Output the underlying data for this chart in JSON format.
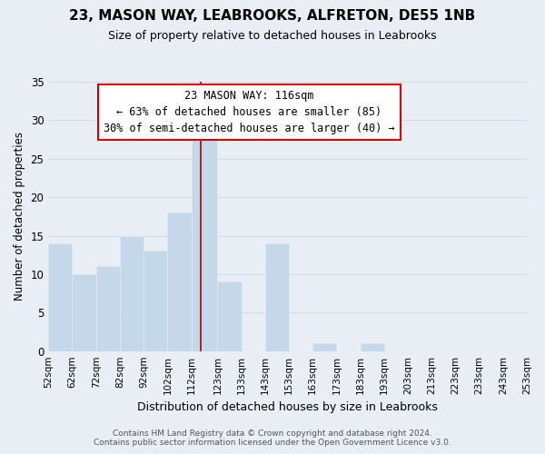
{
  "title": "23, MASON WAY, LEABROOKS, ALFRETON, DE55 1NB",
  "subtitle": "Size of property relative to detached houses in Leabrooks",
  "xlabel": "Distribution of detached houses by size in Leabrooks",
  "ylabel": "Number of detached properties",
  "bin_edges": [
    52,
    62,
    72,
    82,
    92,
    102,
    112,
    123,
    133,
    143,
    153,
    163,
    173,
    183,
    193,
    203,
    213,
    223,
    233,
    243,
    253
  ],
  "bar_heights": [
    14,
    10,
    11,
    15,
    13,
    18,
    28,
    9,
    0,
    14,
    0,
    1,
    0,
    1,
    0,
    0,
    0,
    0,
    0,
    0
  ],
  "bar_color": "#c5d8ea",
  "bar_edgecolor": "#dce9f5",
  "grid_color": "#d0dce8",
  "vline_x": 116,
  "vline_color": "#aa0000",
  "annotation_title": "23 MASON WAY: 116sqm",
  "annotation_line1": "← 63% of detached houses are smaller (85)",
  "annotation_line2": "30% of semi-detached houses are larger (40) →",
  "annotation_box_edgecolor": "#cc0000",
  "annotation_box_facecolor": "#ffffff",
  "ylim": [
    0,
    35
  ],
  "yticks": [
    0,
    5,
    10,
    15,
    20,
    25,
    30,
    35
  ],
  "footer_line1": "Contains HM Land Registry data © Crown copyright and database right 2024.",
  "footer_line2": "Contains public sector information licensed under the Open Government Licence v3.0.",
  "background_color": "#e8eef4",
  "plot_background_color": "#e8eef4"
}
